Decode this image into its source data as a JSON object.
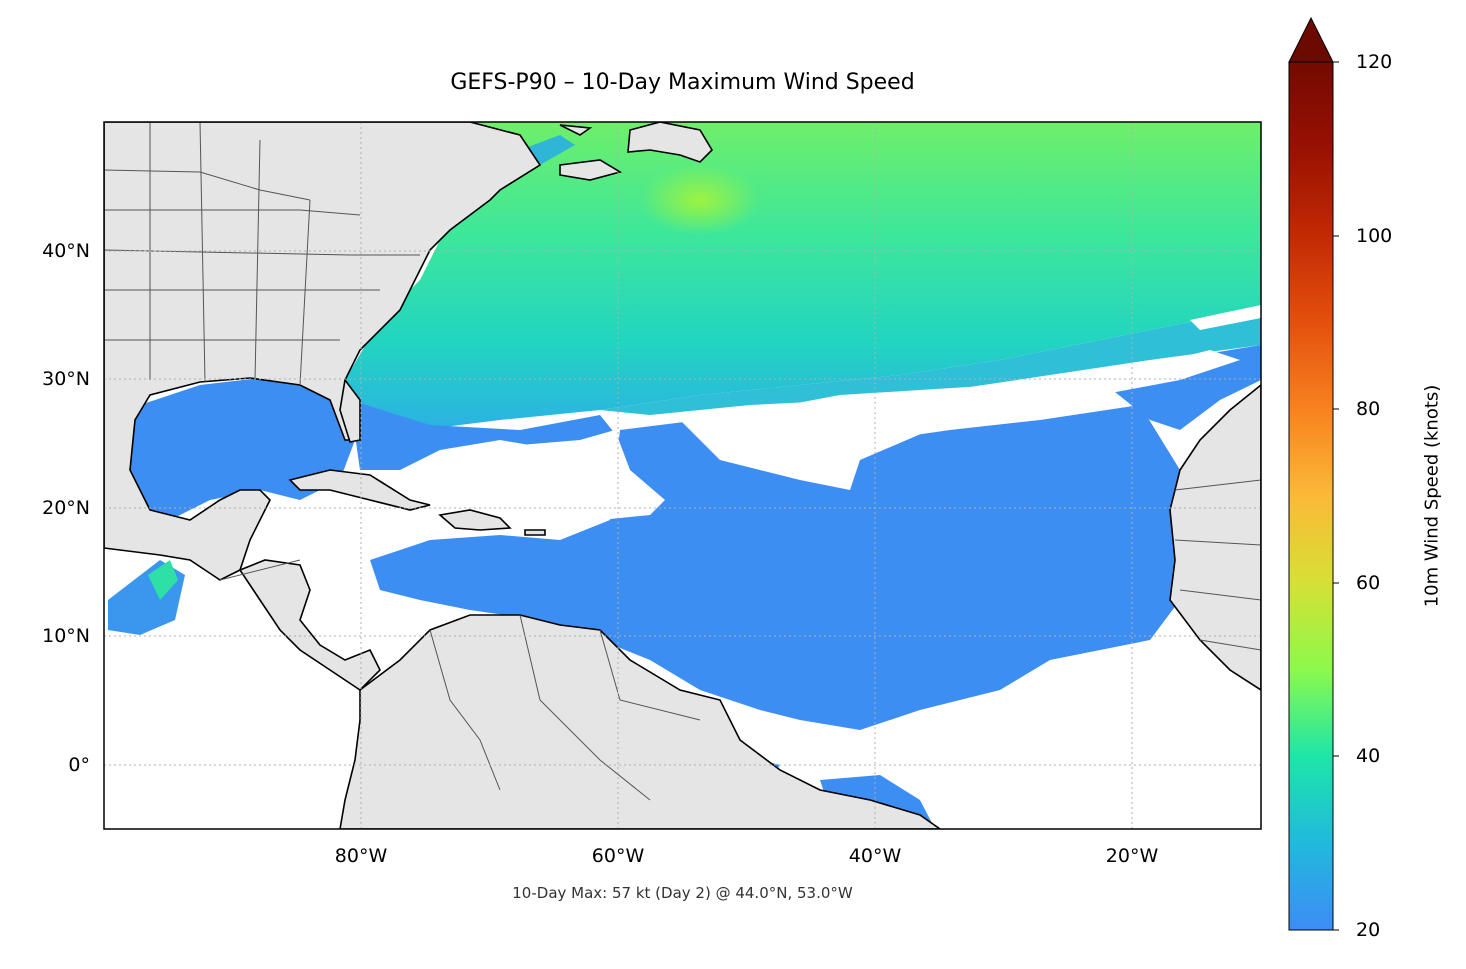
{
  "title": "GEFS-P90 – 10-Day Maximum Wind Speed",
  "subtitle": "10-Day Max: 57 kt (Day 2) @ 44.0°N, 53.0°W",
  "map": {
    "extent": {
      "lon": [
        -100,
        -10
      ],
      "lat": [
        -5,
        50
      ]
    },
    "x_ticks": [
      {
        "lon": -80,
        "label": "80°W"
      },
      {
        "lon": -60,
        "label": "60°W"
      },
      {
        "lon": -40,
        "label": "40°W"
      },
      {
        "lon": -20,
        "label": "20°W"
      }
    ],
    "y_ticks": [
      {
        "lat": 40,
        "label": "40°N"
      },
      {
        "lat": 30,
        "label": "30°N"
      },
      {
        "lat": 20,
        "label": "20°N"
      },
      {
        "lat": 10,
        "label": "10°N"
      },
      {
        "lat": 0,
        "label": "0°"
      }
    ],
    "gridlines": true,
    "land_color": "#e5e5e5",
    "ocean_background": "#ffffff",
    "max_marker": {
      "lat": 44.0,
      "lon": -53.0,
      "value_kt": 57
    }
  },
  "colorbar": {
    "label": "10m Wind Speed (knots)",
    "min": 20,
    "max": 120,
    "extend": "max",
    "ticks": [
      {
        "value": 20,
        "label": "20"
      },
      {
        "value": 40,
        "label": "40"
      },
      {
        "value": 60,
        "label": "60"
      },
      {
        "value": 80,
        "label": "80"
      },
      {
        "value": 100,
        "label": "100"
      },
      {
        "value": 120,
        "label": "120"
      }
    ],
    "colormap": "turbo",
    "extend_color": "#6b0a00"
  }
}
